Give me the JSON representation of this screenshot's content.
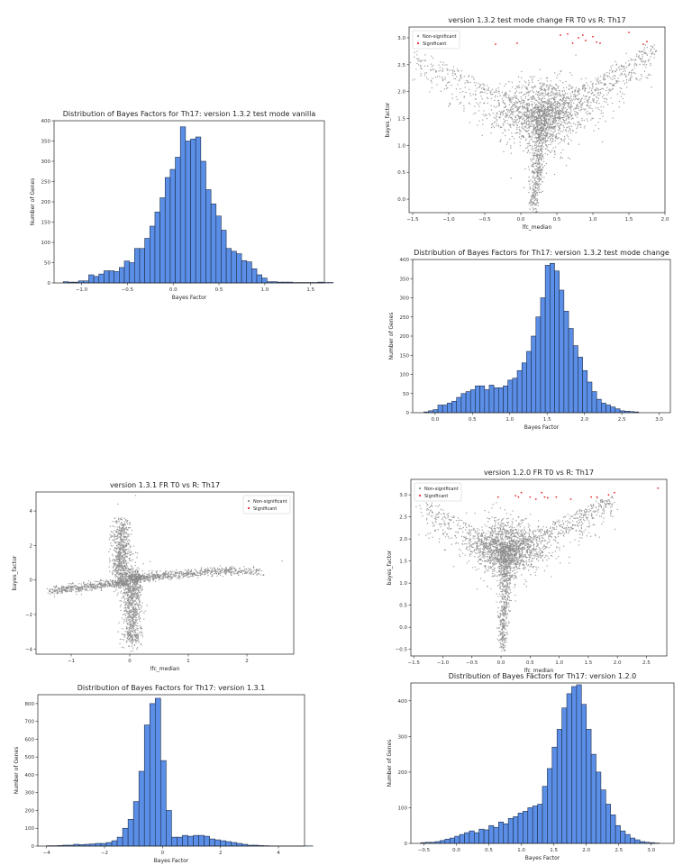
{
  "page": {
    "background": "#ffffff"
  },
  "colors": {
    "bar": "#5b8ee6",
    "bar_edge": "#1f2f4a",
    "nonsig": "#8a8a8a",
    "sig": "#e8262b",
    "frame": "#222222"
  },
  "chart_data": [
    {
      "id": "hist_132_vanilla",
      "type": "bar",
      "title": "Distribution of Bayes Factors for Th17: version 1.3.2 test mode vanilla",
      "xlabel": "Bayes Factor",
      "ylabel": "Number of Genes",
      "xlim": [
        -1.3,
        1.65
      ],
      "ylim": [
        0,
        400
      ],
      "xticks": [
        -1.0,
        -0.5,
        0.0,
        0.5,
        1.0,
        1.5
      ],
      "xtick_labels": [
        "−1.0",
        "−0.5",
        "0.0",
        "0.5",
        "1.0",
        "1.5"
      ],
      "yticks": [
        0,
        50,
        100,
        150,
        200,
        250,
        300,
        350,
        400
      ],
      "bin_start": -1.2,
      "bin_width": 0.0556,
      "values": [
        3,
        2,
        2,
        5,
        5,
        20,
        16,
        22,
        30,
        30,
        28,
        38,
        54,
        50,
        85,
        85,
        110,
        140,
        175,
        210,
        260,
        280,
        310,
        385,
        350,
        355,
        360,
        300,
        230,
        195,
        165,
        130,
        85,
        78,
        72,
        55,
        52,
        35,
        20,
        12,
        3,
        3,
        2,
        2,
        2,
        1,
        1,
        1,
        1,
        1,
        2,
        1,
        1
      ],
      "grid": false,
      "legend": null
    },
    {
      "id": "scatter_132_change",
      "type": "scatter",
      "title": "version 1.3.2 test mode change FR T0 vs R: Th17",
      "xlabel": "lfc_median",
      "ylabel": "bayes_factor",
      "xlim": [
        -1.55,
        2.0
      ],
      "ylim": [
        -0.25,
        3.2
      ],
      "xticks": [
        -1.5,
        -1.0,
        -0.5,
        0.0,
        0.5,
        1.0,
        1.5,
        2.0
      ],
      "xtick_labels": [
        "−1.5",
        "−1.0",
        "−0.5",
        "0.0",
        "0.5",
        "1.0",
        "1.5",
        "2.0"
      ],
      "yticks": [
        0.0,
        0.5,
        1.0,
        1.5,
        2.0,
        2.5,
        3.0
      ],
      "yfmt": "f1",
      "shape": "v",
      "apex": [
        0.18,
        -0.15
      ],
      "core": [
        0.3,
        1.65
      ],
      "left_end": [
        -1.45,
        2.8
      ],
      "right_end": [
        1.85,
        2.9
      ],
      "sig_points": [
        [
          -1.48,
          2.88
        ],
        [
          -0.35,
          2.88
        ],
        [
          -0.05,
          2.9
        ],
        [
          0.55,
          3.05
        ],
        [
          0.65,
          3.07
        ],
        [
          0.72,
          2.9
        ],
        [
          0.8,
          3.0
        ],
        [
          0.86,
          3.05
        ],
        [
          0.9,
          2.95
        ],
        [
          1.0,
          3.02
        ],
        [
          1.05,
          2.92
        ],
        [
          1.1,
          2.9
        ],
        [
          1.5,
          3.1
        ],
        [
          1.7,
          2.88
        ],
        [
          1.75,
          2.93
        ]
      ],
      "series": [
        {
          "name": "Non-significant"
        },
        {
          "name": "Significant"
        }
      ],
      "legend": "top-left"
    },
    {
      "id": "hist_132_change",
      "type": "bar",
      "title": "Distribution of Bayes Factors for Th17: version 1.3.2 test mode change",
      "xlabel": "Bayes Factor",
      "ylabel": "Number of Genes",
      "xlim": [
        -0.3,
        3.15
      ],
      "ylim": [
        0,
        400
      ],
      "xticks": [
        0.0,
        0.5,
        1.0,
        1.5,
        2.0,
        2.5,
        3.0
      ],
      "xtick_labels": [
        "0.0",
        "0.5",
        "1.0",
        "1.5",
        "2.0",
        "2.5",
        "3.0"
      ],
      "yticks": [
        0,
        50,
        100,
        150,
        200,
        250,
        300,
        350,
        400
      ],
      "bin_start": -0.15,
      "bin_width": 0.0625,
      "values": [
        2,
        5,
        8,
        20,
        20,
        25,
        30,
        40,
        50,
        55,
        60,
        70,
        70,
        60,
        72,
        65,
        65,
        70,
        85,
        90,
        110,
        130,
        160,
        200,
        250,
        300,
        385,
        390,
        370,
        320,
        265,
        220,
        175,
        145,
        110,
        80,
        55,
        35,
        25,
        20,
        15,
        10,
        5,
        4,
        3,
        2
      ],
      "grid": false,
      "legend": null
    },
    {
      "id": "scatter_131",
      "type": "scatter",
      "title": "version 1.3.1 FR T0 vs R: Th17",
      "xlabel": "lfc_median",
      "ylabel": "bayes_factor",
      "xlim": [
        -1.6,
        2.8
      ],
      "ylim": [
        -4.3,
        5.1
      ],
      "xticks": [
        -1,
        0,
        1,
        2
      ],
      "xtick_labels": [
        "−1",
        "0",
        "1",
        "2"
      ],
      "yticks": [
        -4,
        -2,
        0,
        2,
        4
      ],
      "ytick_labels": [
        "−4",
        "−2",
        "0",
        "2",
        "4"
      ],
      "yfmt": "int",
      "shape": "x",
      "sig_points": [],
      "series": [
        {
          "name": "Non-significant"
        },
        {
          "name": "Significant"
        }
      ],
      "legend": "top-right"
    },
    {
      "id": "scatter_120",
      "type": "scatter",
      "title": "version 1.2.0 FR T0 vs R: Th17",
      "xlabel": "lfc_median",
      "ylabel": "bayes_factor",
      "xlim": [
        -1.55,
        2.85
      ],
      "ylim": [
        -0.65,
        3.35
      ],
      "xticks": [
        -1.5,
        -1.0,
        -0.5,
        0.0,
        0.5,
        1.0,
        1.5,
        2.0,
        2.5
      ],
      "xtick_labels": [
        "−1.5",
        "−1.0",
        "−0.5",
        "0.0",
        "0.5",
        "1.0",
        "1.5",
        "2.0",
        "2.5"
      ],
      "yticks": [
        -0.5,
        0.0,
        0.5,
        1.0,
        1.5,
        2.0,
        2.5,
        3.0
      ],
      "ytick_labels": [
        "−0.5",
        "0.0",
        "0.5",
        "1.0",
        "1.5",
        "2.0",
        "2.5",
        "3.0"
      ],
      "yfmt": "f1",
      "shape": "v",
      "apex": [
        0.02,
        -0.5
      ],
      "core": [
        0.1,
        1.85
      ],
      "left_end": [
        -1.35,
        2.9
      ],
      "right_end": [
        1.9,
        3.0
      ],
      "sig_points": [
        [
          -1.3,
          2.95
        ],
        [
          -0.05,
          2.95
        ],
        [
          0.25,
          2.98
        ],
        [
          0.3,
          2.95
        ],
        [
          0.35,
          3.05
        ],
        [
          0.5,
          2.95
        ],
        [
          0.6,
          2.9
        ],
        [
          0.7,
          3.05
        ],
        [
          0.75,
          2.95
        ],
        [
          0.8,
          2.93
        ],
        [
          0.95,
          2.95
        ],
        [
          1.2,
          2.9
        ],
        [
          1.55,
          2.95
        ],
        [
          1.65,
          2.95
        ],
        [
          1.85,
          3.0
        ],
        [
          1.95,
          3.05
        ],
        [
          2.7,
          3.15
        ]
      ],
      "series": [
        {
          "name": "Non-significant"
        },
        {
          "name": "Significant"
        }
      ],
      "legend": "top-left"
    },
    {
      "id": "hist_131",
      "type": "bar",
      "title": "Distribution of Bayes Factors for Th17: version 1.3.1",
      "xlabel": "Bayes Factor",
      "ylabel": "Number of Genes",
      "xlim": [
        -4.3,
        4.9
      ],
      "ylim": [
        0,
        850
      ],
      "xticks": [
        -4,
        -2,
        0,
        2,
        4
      ],
      "xtick_labels": [
        "−4",
        "−2",
        "0",
        "2",
        "4"
      ],
      "yticks": [
        0,
        100,
        200,
        300,
        400,
        500,
        600,
        700,
        800
      ],
      "bin_start": -4.0,
      "bin_width": 0.1875,
      "values": [
        2,
        2,
        3,
        5,
        5,
        10,
        8,
        10,
        12,
        15,
        15,
        20,
        30,
        50,
        100,
        150,
        250,
        420,
        680,
        800,
        830,
        480,
        200,
        50,
        50,
        60,
        55,
        60,
        60,
        55,
        40,
        35,
        30,
        25,
        20,
        15,
        10,
        5,
        5,
        3,
        2,
        1,
        1,
        1,
        1,
        1,
        1,
        1,
        1
      ],
      "grid": false,
      "legend": null
    },
    {
      "id": "hist_120",
      "type": "bar",
      "title": "Distribution of Bayes Factors for Th17: version 1.2.0",
      "xlabel": "Bayes Factor",
      "ylabel": "Number of Genes",
      "xlim": [
        -0.7,
        3.35
      ],
      "ylim": [
        0,
        450
      ],
      "xticks": [
        -0.5,
        0.0,
        0.5,
        1.0,
        1.5,
        2.0,
        2.5,
        3.0
      ],
      "xtick_labels": [
        "−0.5",
        "0.0",
        "0.5",
        "1.0",
        "1.5",
        "2.0",
        "2.5",
        "3.0"
      ],
      "yticks": [
        0,
        100,
        200,
        300,
        400
      ],
      "bin_start": -0.55,
      "bin_width": 0.075,
      "values": [
        2,
        3,
        3,
        5,
        8,
        12,
        15,
        20,
        25,
        30,
        35,
        30,
        40,
        38,
        50,
        45,
        60,
        55,
        70,
        75,
        85,
        90,
        100,
        105,
        110,
        160,
        210,
        270,
        320,
        380,
        420,
        440,
        445,
        390,
        320,
        250,
        200,
        150,
        110,
        80,
        50,
        35,
        25,
        15,
        10,
        5,
        3,
        2,
        1
      ],
      "grid": false,
      "legend": null
    }
  ]
}
